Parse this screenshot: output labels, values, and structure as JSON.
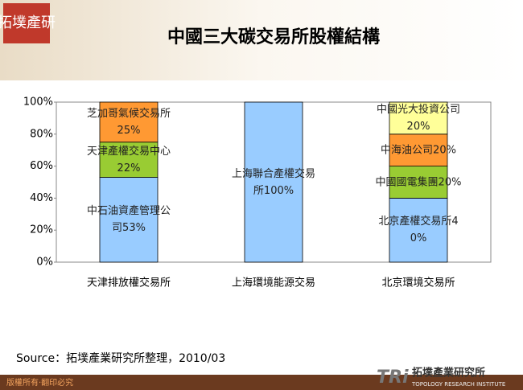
{
  "slide": {
    "logo": "拓墣產研",
    "source": "Source：拓墣產業研究所整理，2010/03",
    "copyright": "版權所有‧翻印必究",
    "brand_mark": "TRi",
    "brand_name": "拓墣產業研究所",
    "brand_sub": "TOPOLOGY RESEARCH INSTITUTE"
  },
  "chart_data": {
    "type": "stacked_bar",
    "title": "中國三大碳交易所股權結構",
    "categories": [
      "天津排放權交易所",
      "上海環境能源交易",
      "北京環境交易所"
    ],
    "series": [
      {
        "name": "中石油資產管理公司",
        "color": "#99ccff",
        "values": [
          53,
          null,
          null
        ],
        "value_labels": [
          "53%",
          null,
          null
        ]
      },
      {
        "name": "天津產權交易中心",
        "color": "#99cc33",
        "values": [
          22,
          null,
          null
        ],
        "value_labels": [
          "22%",
          null,
          null
        ]
      },
      {
        "name": "芝加哥氣候交易所",
        "color": "#ff9933",
        "values": [
          25,
          null,
          null
        ],
        "value_labels": [
          "25%",
          null,
          null
        ]
      },
      {
        "name": "上海聯合產權交易所",
        "color": "#99ccff",
        "values": [
          null,
          100,
          null
        ],
        "value_labels": [
          null,
          "100%",
          null
        ]
      },
      {
        "name": "北京產權交易所",
        "color": "#99ccff",
        "values": [
          null,
          null,
          40
        ],
        "value_labels": [
          null,
          null,
          "40%"
        ]
      },
      {
        "name": "中國國電集團",
        "color": "#99cc33",
        "values": [
          null,
          null,
          20
        ],
        "value_labels": [
          null,
          null,
          "20%"
        ]
      },
      {
        "name": "中海油公司",
        "color": "#ff9933",
        "values": [
          null,
          null,
          20
        ],
        "value_labels": [
          null,
          null,
          "20%"
        ]
      },
      {
        "name": "中國光大投資公司",
        "color": "#ffff99",
        "values": [
          null,
          null,
          20
        ],
        "value_labels": [
          null,
          null,
          "20%"
        ]
      }
    ],
    "ylim": [
      0,
      100
    ],
    "yticks": [
      {
        "value": 0,
        "label": "0%"
      },
      {
        "value": 20,
        "label": "20%"
      },
      {
        "value": 40,
        "label": "40%"
      },
      {
        "value": 60,
        "label": "60%"
      },
      {
        "value": 80,
        "label": "80%"
      },
      {
        "value": 100,
        "label": "100%"
      }
    ]
  }
}
